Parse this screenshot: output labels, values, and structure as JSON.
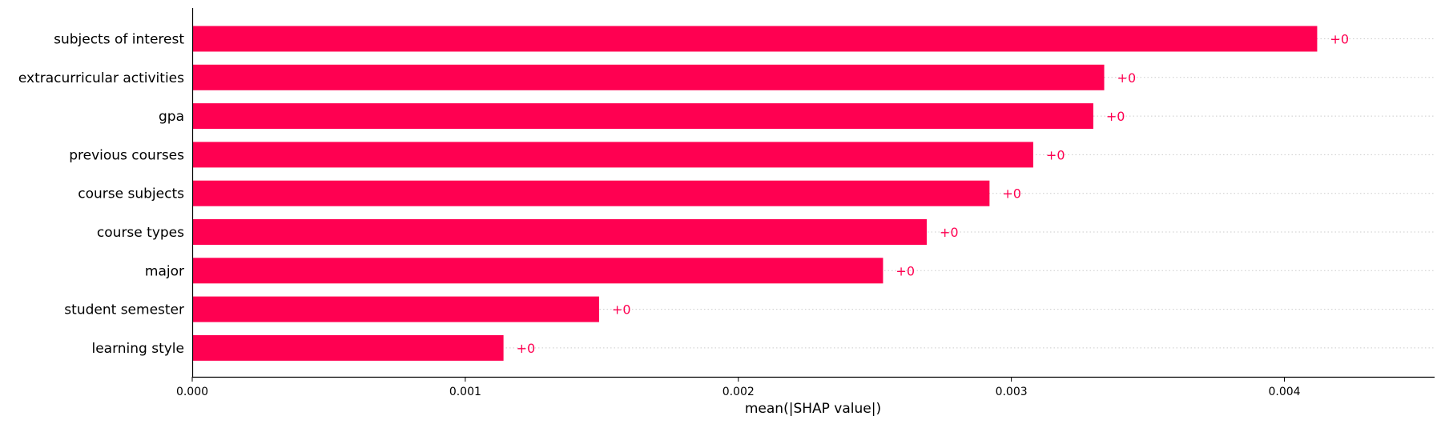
{
  "chart_data": {
    "type": "bar",
    "orientation": "horizontal",
    "categories": [
      "subjects of interest",
      "extracurricular activities",
      "gpa",
      "previous courses",
      "course subjects",
      "course types",
      "major",
      "student semester",
      "learning style"
    ],
    "values": [
      0.00412,
      0.00334,
      0.0033,
      0.00308,
      0.00292,
      0.00269,
      0.00253,
      0.00149,
      0.00114
    ],
    "value_labels": [
      "+0",
      "+0",
      "+0",
      "+0",
      "+0",
      "+0",
      "+0",
      "+0",
      "+0"
    ],
    "xlabel": "mean(|SHAP value|)",
    "xlim": [
      0,
      0.00455
    ],
    "xticks": [
      0,
      0.001,
      0.002,
      0.003,
      0.004
    ],
    "xtick_labels": [
      "0.000",
      "0.001",
      "0.002",
      "0.003",
      "0.004"
    ],
    "grid": "dotted row guides",
    "bar_color": "#ff0051",
    "label_color": "#ff0051"
  }
}
